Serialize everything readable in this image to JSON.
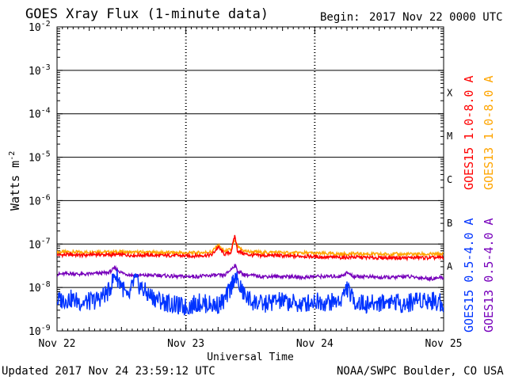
{
  "header": {
    "title": "GOES Xray Flux (1-minute data)",
    "begin_label": "Begin:",
    "begin_value": "2017 Nov 22 0000 UTC"
  },
  "footer": {
    "updated": "Updated 2017 Nov 24 23:59:12 UTC",
    "credit": "NOAA/SWPC Boulder, CO USA"
  },
  "legend": [
    {
      "label": "GOES15 1.0-8.0 A",
      "color": "#ff0000"
    },
    {
      "label": "GOES13 1.0-8.0 A",
      "color": "#ffa500"
    },
    {
      "label": "GOES15 0.5-4.0 A",
      "color": "#0033ff"
    },
    {
      "label": "GOES13 0.5-4.0 A",
      "color": "#7700bb"
    }
  ],
  "chart_data": {
    "type": "line",
    "title": "GOES Xray Flux (1-minute data)",
    "xlabel": "Universal Time",
    "ylabel": "Watts m-2",
    "yscale": "log",
    "ylim": [
      1e-09,
      0.01
    ],
    "xlim": [
      0,
      3
    ],
    "x_tick_labels": [
      "Nov 22",
      "Nov 23",
      "Nov 24",
      "Nov 25"
    ],
    "y_ticks": [
      {
        "base": "10",
        "exp": "-9"
      },
      {
        "base": "10",
        "exp": "-8"
      },
      {
        "base": "10",
        "exp": "-7"
      },
      {
        "base": "10",
        "exp": "-6"
      },
      {
        "base": "10",
        "exp": "-5"
      },
      {
        "base": "10",
        "exp": "-4"
      },
      {
        "base": "10",
        "exp": "-3"
      },
      {
        "base": "10",
        "exp": "-2"
      }
    ],
    "flare_classes": [
      {
        "label": "A",
        "value": 1e-08
      },
      {
        "label": "B",
        "value": 1e-07
      },
      {
        "label": "C",
        "value": 1e-06
      },
      {
        "label": "M",
        "value": 1e-05
      },
      {
        "label": "X",
        "value": 0.0001
      }
    ],
    "gridlines": [
      1e-08,
      1e-07,
      1e-06,
      1e-05,
      0.0001,
      0.001
    ],
    "series": [
      {
        "name": "GOES13 1.0-8.0 A",
        "color": "#ffa500",
        "x": [
          0,
          0.1,
          0.2,
          0.3,
          0.4,
          0.5,
          0.6,
          0.7,
          0.8,
          0.9,
          1.0,
          1.1,
          1.2,
          1.25,
          1.3,
          1.35,
          1.38,
          1.4,
          1.45,
          1.5,
          1.6,
          1.7,
          1.8,
          1.9,
          2.0,
          2.1,
          2.2,
          2.3,
          2.4,
          2.5,
          2.6,
          2.7,
          2.8,
          2.9,
          3.0
        ],
        "y": [
          6.5e-08,
          6.6e-08,
          6.4e-08,
          6.8e-08,
          6.5e-08,
          6.6e-08,
          6.4e-08,
          6.5e-08,
          6.3e-08,
          6.4e-08,
          6.2e-08,
          6.3e-08,
          6.6e-08,
          9.5e-08,
          6.8e-08,
          7.5e-08,
          1.2e-07,
          8.5e-08,
          7e-08,
          6.6e-08,
          6.4e-08,
          6.5e-08,
          6.2e-08,
          6.3e-08,
          6.1e-08,
          6e-08,
          5.9e-08,
          6e-08,
          5.9e-08,
          5.8e-08,
          5.9e-08,
          5.8e-08,
          5.9e-08,
          5.8e-08,
          5.9e-08
        ]
      },
      {
        "name": "GOES15 1.0-8.0 A",
        "color": "#ff0000",
        "x": [
          0,
          0.1,
          0.2,
          0.3,
          0.4,
          0.5,
          0.6,
          0.7,
          0.8,
          0.9,
          1.0,
          1.1,
          1.2,
          1.25,
          1.3,
          1.35,
          1.38,
          1.4,
          1.45,
          1.5,
          1.6,
          1.7,
          1.8,
          1.9,
          2.0,
          2.1,
          2.2,
          2.3,
          2.4,
          2.5,
          2.6,
          2.7,
          2.8,
          2.9,
          3.0
        ],
        "y": [
          5.6e-08,
          5.7e-08,
          5.5e-08,
          5.8e-08,
          5.6e-08,
          5.7e-08,
          5.5e-08,
          5.6e-08,
          5.4e-08,
          5.5e-08,
          5.3e-08,
          5.4e-08,
          5.6e-08,
          8.5e-08,
          5.8e-08,
          6.5e-08,
          1.6e-07,
          7e-08,
          6e-08,
          5.6e-08,
          5.4e-08,
          5.5e-08,
          5.2e-08,
          5.3e-08,
          5.1e-08,
          5e-08,
          4.9e-08,
          5e-08,
          4.9e-08,
          4.8e-08,
          4.9e-08,
          4.8e-08,
          4.9e-08,
          4.8e-08,
          4.9e-08
        ]
      },
      {
        "name": "GOES13 0.5-4.0 A",
        "color": "#7700bb",
        "x": [
          0,
          0.1,
          0.2,
          0.3,
          0.4,
          0.45,
          0.5,
          0.55,
          0.6,
          0.7,
          0.8,
          0.9,
          1.0,
          1.1,
          1.2,
          1.25,
          1.3,
          1.35,
          1.38,
          1.4,
          1.45,
          1.5,
          1.6,
          1.7,
          1.8,
          1.9,
          2.0,
          2.1,
          2.2,
          2.25,
          2.3,
          2.4,
          2.5,
          2.6,
          2.7,
          2.8,
          2.9,
          3.0
        ],
        "y": [
          2e-08,
          2.1e-08,
          2e-08,
          2.1e-08,
          2.2e-08,
          2.8e-08,
          2.2e-08,
          2e-08,
          1.9e-08,
          1.9e-08,
          1.9e-08,
          1.8e-08,
          1.8e-08,
          1.8e-08,
          1.9e-08,
          1.9e-08,
          1.9e-08,
          2.6e-08,
          3.3e-08,
          2.4e-08,
          2e-08,
          1.9e-08,
          1.8e-08,
          1.8e-08,
          1.8e-08,
          1.7e-08,
          1.8e-08,
          1.8e-08,
          1.8e-08,
          2.2e-08,
          1.8e-08,
          1.8e-08,
          1.7e-08,
          1.7e-08,
          1.8e-08,
          1.7e-08,
          1.6e-08,
          1.7e-08
        ]
      },
      {
        "name": "GOES15 0.5-4.0 A",
        "color": "#0033ff",
        "x": [
          0,
          0.1,
          0.2,
          0.3,
          0.4,
          0.45,
          0.5,
          0.55,
          0.6,
          0.7,
          0.8,
          0.9,
          1.0,
          1.1,
          1.2,
          1.25,
          1.3,
          1.35,
          1.38,
          1.4,
          1.45,
          1.5,
          1.6,
          1.7,
          1.8,
          1.9,
          2.0,
          2.1,
          2.2,
          2.25,
          2.3,
          2.4,
          2.5,
          2.6,
          2.7,
          2.8,
          2.9,
          3.0
        ],
        "y": [
          5e-09,
          5.5e-09,
          4.5e-09,
          5e-09,
          8e-09,
          2e-08,
          1.2e-08,
          5e-09,
          1.5e-08,
          7e-09,
          5e-09,
          4e-09,
          3.5e-09,
          4.5e-09,
          4e-09,
          4e-09,
          5e-09,
          1e-08,
          2e-08,
          1.3e-08,
          7e-09,
          5e-09,
          4e-09,
          5e-09,
          4.5e-09,
          4e-09,
          5e-09,
          4.5e-09,
          5e-09,
          1e-08,
          5e-09,
          4e-09,
          4.5e-09,
          5e-09,
          4e-09,
          5.5e-09,
          5e-09,
          4.5e-09
        ]
      }
    ]
  }
}
